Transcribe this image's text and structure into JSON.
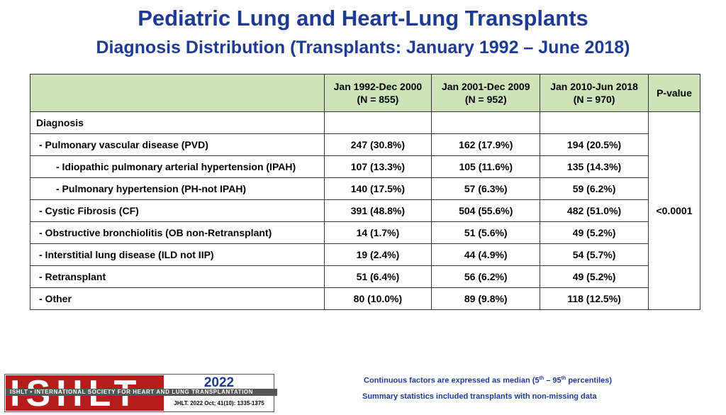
{
  "title": "Pediatric Lung and Heart-Lung Transplants",
  "subtitle": "Diagnosis Distribution (Transplants: January 1992 – June 2018)",
  "table": {
    "headers": [
      {
        "line1": "",
        "line2": ""
      },
      {
        "line1": "Jan 1992-Dec 2000",
        "line2": "(N = 855)"
      },
      {
        "line1": "Jan 2001-Dec 2009",
        "line2": "(N = 952)"
      },
      {
        "line1": "Jan 2010-Jun 2018",
        "line2": "(N = 970)"
      },
      {
        "line1": "P-value",
        "line2": ""
      }
    ],
    "section_label": "Diagnosis",
    "rows": [
      {
        "label": "- Pulmonary vascular disease (PVD)",
        "level": 1,
        "values": [
          "247 (30.8%)",
          "162 (17.9%)",
          "194 (20.5%)"
        ]
      },
      {
        "label": "- Idiopathic pulmonary arterial hypertension (IPAH)",
        "level": 2,
        "values": [
          "107 (13.3%)",
          "105 (11.6%)",
          "135 (14.3%)"
        ]
      },
      {
        "label": "- Pulmonary hypertension (PH-not IPAH)",
        "level": 2,
        "values": [
          "140 (17.5%)",
          "57 (6.3%)",
          "59 (6.2%)"
        ]
      },
      {
        "label": "- Cystic Fibrosis (CF)",
        "level": 1,
        "values": [
          "391 (48.8%)",
          "504 (55.6%)",
          "482 (51.0%)"
        ]
      },
      {
        "label": "- Obstructive bronchiolitis (OB non-Retransplant)",
        "level": 1,
        "values": [
          "14 (1.7%)",
          "51 (5.6%)",
          "49 (5.2%)"
        ]
      },
      {
        "label": "- Interstitial lung disease (ILD not IIP)",
        "level": 1,
        "values": [
          "19 (2.4%)",
          "44 (4.9%)",
          "54 (5.7%)"
        ]
      },
      {
        "label": "- Retransplant",
        "level": 1,
        "values": [
          "51 (6.4%)",
          "56 (6.2%)",
          "49 (5.2%)"
        ]
      },
      {
        "label": "- Other",
        "level": 1,
        "values": [
          "80 (10.0%)",
          "89 (9.8%)",
          "118 (12.5%)"
        ]
      }
    ],
    "p_value": "<0.0001"
  },
  "logo": {
    "text": "ISHLT",
    "band": "ISHLT • INTERNATIONAL SOCIETY FOR HEART AND LUNG TRANSPLANTATION",
    "year": "2022",
    "citation": "JHLT. 2022 Oct; 41(10): 1335-1375"
  },
  "footnotes": {
    "continuous_pre": "Continuous factors are expressed as median (5",
    "sup1": "th",
    "continuous_mid": " – 95",
    "sup2": "th",
    "continuous_post": " percentiles)",
    "summary": "Summary statistics included transplants with non-missing data"
  },
  "colors": {
    "title": "#1f3a93",
    "header_bg": "#cfe3b8",
    "logo_red": "#b71c1c"
  }
}
